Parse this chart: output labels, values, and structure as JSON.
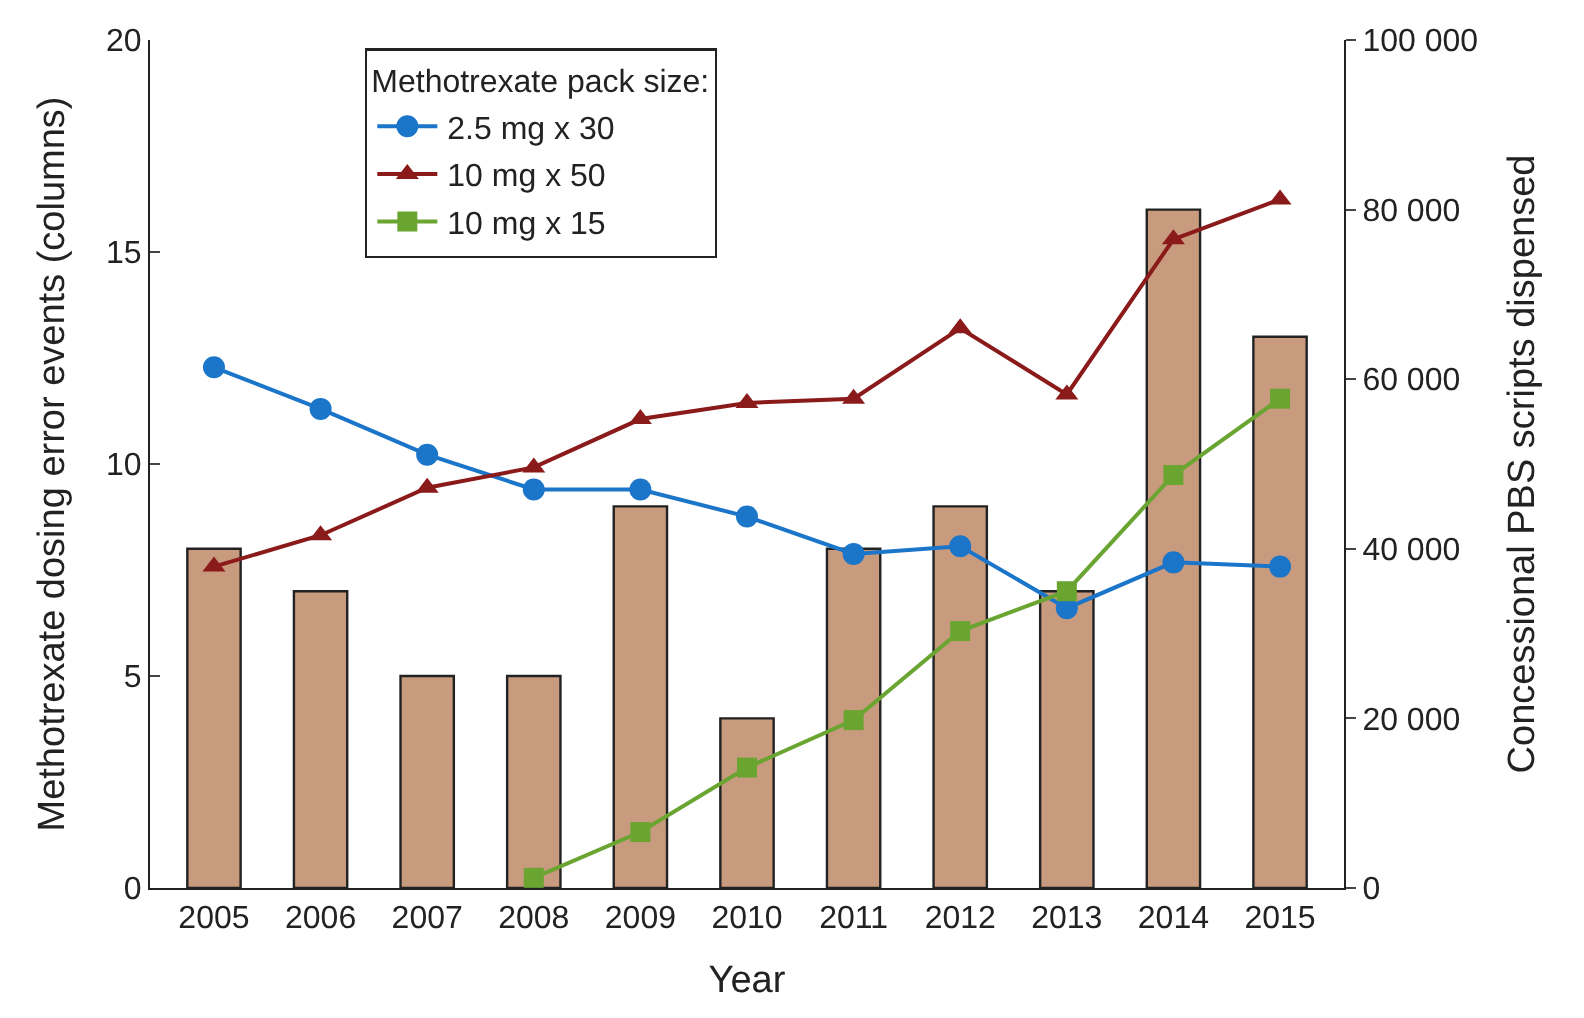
{
  "chart_data": {
    "type": "bar",
    "xlabel": "Year",
    "ylabel": "Methotrexate dosing error events (columns)",
    "y2label": "Concessional PBS scripts dispensed",
    "legend_title": "Methotrexate pack size:",
    "categories": [
      "2005",
      "2006",
      "2007",
      "2008",
      "2009",
      "2010",
      "2011",
      "2012",
      "2013",
      "2014",
      "2015"
    ],
    "series": [
      {
        "color": "#c89a7e",
        "values": [
          8,
          7,
          5,
          5,
          9,
          4,
          8,
          9,
          7,
          16,
          13
        ]
      },
      {
        "type": "line",
        "axis": "y2",
        "name": "2.5 mg x 30",
        "color": "#1b75c9",
        "marker": "circle",
        "values": [
          61400,
          56500,
          51100,
          47000,
          47000,
          43800,
          39400,
          40300,
          33000,
          38400,
          37900
        ]
      },
      {
        "type": "line",
        "axis": "y2",
        "name": "10 mg x 50",
        "color": "#8b1a1a",
        "marker": "triangle",
        "values": [
          37900,
          41600,
          47200,
          49600,
          55300,
          57200,
          57700,
          66000,
          58200,
          76500,
          81200
        ]
      },
      {
        "type": "line",
        "axis": "y2",
        "name": "10 mg x 15",
        "color": "#6aa532",
        "marker": "square",
        "values": [
          null,
          null,
          null,
          1200,
          6600,
          14200,
          19800,
          30300,
          35000,
          48700,
          57700
        ]
      }
    ],
    "ylim": [
      0,
      20
    ],
    "yticks": [
      0,
      5,
      10,
      15,
      20
    ],
    "y2lim": [
      0,
      100000
    ],
    "y2ticks": [
      0,
      {
        "value": 20000,
        "label": "20 000"
      },
      {
        "value": 40000,
        "label": "40 000"
      },
      {
        "value": 60000,
        "label": "60 000"
      },
      {
        "value": 80000,
        "label": "80 000"
      },
      {
        "value": 100000,
        "label": "100 000"
      }
    ],
    "legend": "top left"
  }
}
